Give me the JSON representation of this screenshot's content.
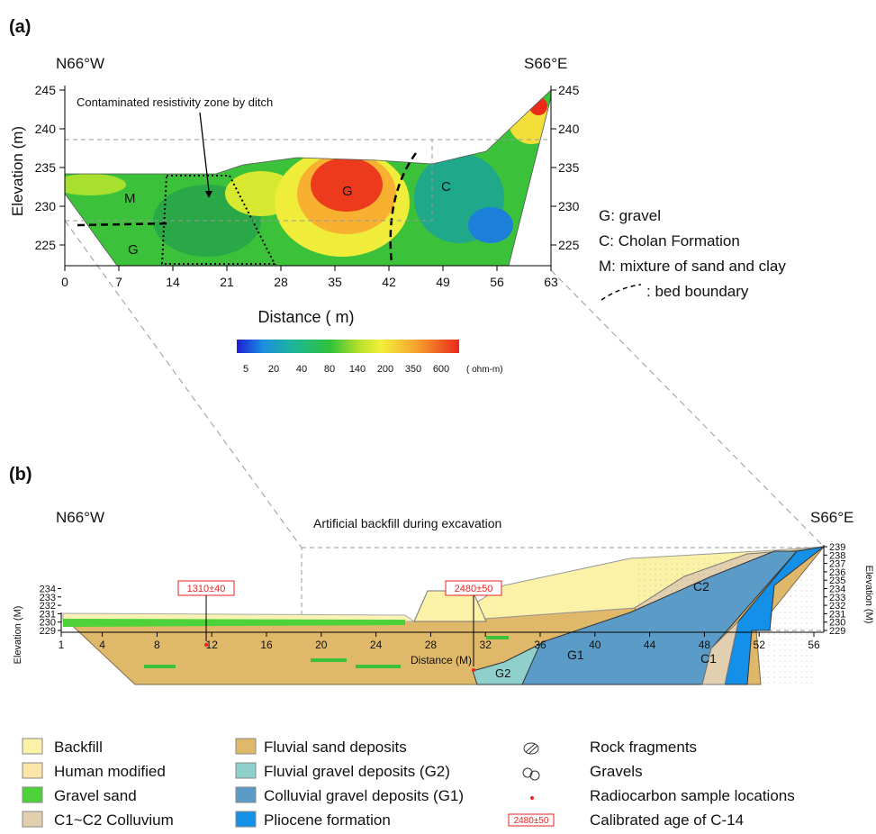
{
  "panel_a": {
    "label": "(a)",
    "left_heading": "N66°W",
    "right_heading": "S66°E",
    "annotation": "Contaminated resistivity zone by ditch",
    "y_label": "Elevation (m)",
    "x_label": "Distance ( m)",
    "yticks": [
      245,
      240,
      235,
      230,
      225
    ],
    "xticks": [
      0,
      7,
      14,
      21,
      28,
      35,
      42,
      49,
      56,
      63
    ],
    "region_labels": [
      "M",
      "G",
      "G",
      "C"
    ],
    "colorbar": {
      "ticks": [
        5,
        20,
        40,
        80,
        140,
        200,
        350,
        600
      ],
      "unit": "( ohm-m)"
    },
    "legend": [
      "G: gravel",
      "C: Cholan Formation",
      "M: mixture of sand and clay",
      ": bed boundary"
    ]
  },
  "panel_b": {
    "label": "(b)",
    "left_heading": "N66°W",
    "right_heading": "S66°E",
    "annotation": "Artificial backfill during excavation",
    "y_label": "Elevation (M)",
    "x_label": "Distance (M)",
    "yticks_left": [
      234,
      233,
      232,
      231,
      230,
      229
    ],
    "yticks_right": [
      239,
      238,
      237,
      236,
      235,
      234,
      233,
      232,
      231,
      230,
      229
    ],
    "xticks": [
      1,
      4,
      8,
      12,
      16,
      20,
      24,
      28,
      32,
      36,
      40,
      44,
      48,
      52,
      56
    ],
    "region_labels": [
      "G2",
      "G1",
      "C1",
      "C2"
    ],
    "dates": [
      "1310±40",
      "2480±50"
    ],
    "legend": [
      "Backfill",
      "Human modified",
      "Gravel sand",
      "C1~C2 Colluvium",
      "Fluvial sand deposits",
      "Fluvial gravel deposits (G2)",
      "Colluvial gravel deposits (G1)",
      "Pliocene formation",
      "Rock fragments",
      "Gravels",
      "Radiocarbon sample locations",
      "Calibrated age of C-14"
    ],
    "legend_date": "2480±50"
  }
}
